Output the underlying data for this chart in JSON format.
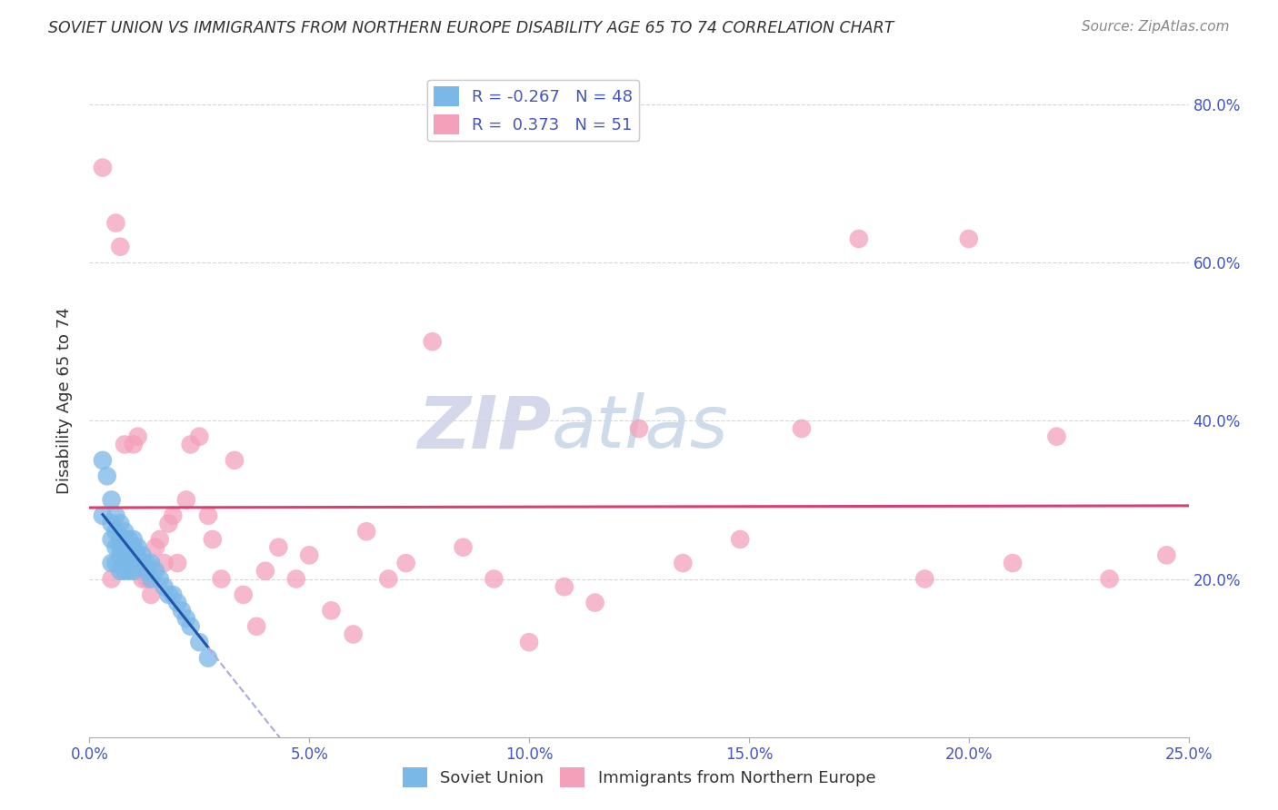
{
  "title": "SOVIET UNION VS IMMIGRANTS FROM NORTHERN EUROPE DISABILITY AGE 65 TO 74 CORRELATION CHART",
  "source": "Source: ZipAtlas.com",
  "ylabel": "Disability Age 65 to 74",
  "xlim": [
    0.0,
    0.25
  ],
  "ylim": [
    0.0,
    0.85
  ],
  "xticks": [
    0.0,
    0.05,
    0.1,
    0.15,
    0.2,
    0.25
  ],
  "yticks": [
    0.2,
    0.4,
    0.6,
    0.8
  ],
  "background_color": "#ffffff",
  "grid_color": "#cccccc",
  "series1_label": "Soviet Union",
  "series2_label": "Immigrants from Northern Europe",
  "series1_color": "#7ab8e8",
  "series2_color": "#f4a0bb",
  "series1_R": -0.267,
  "series1_N": 48,
  "series2_R": 0.373,
  "series2_N": 51,
  "series1_line_color": "#2255aa",
  "series2_line_color": "#d94070",
  "series1_line_dashed_color": "#aaaadd",
  "watermark_zip": "ZIP",
  "watermark_atlas": "atlas",
  "series1_x": [
    0.003,
    0.003,
    0.004,
    0.005,
    0.005,
    0.005,
    0.005,
    0.006,
    0.006,
    0.006,
    0.006,
    0.007,
    0.007,
    0.007,
    0.007,
    0.007,
    0.008,
    0.008,
    0.008,
    0.008,
    0.009,
    0.009,
    0.009,
    0.009,
    0.01,
    0.01,
    0.01,
    0.01,
    0.011,
    0.011,
    0.011,
    0.012,
    0.012,
    0.013,
    0.013,
    0.014,
    0.014,
    0.015,
    0.016,
    0.017,
    0.018,
    0.019,
    0.02,
    0.021,
    0.022,
    0.023,
    0.025,
    0.027
  ],
  "series1_y": [
    0.35,
    0.28,
    0.33,
    0.3,
    0.27,
    0.25,
    0.22,
    0.28,
    0.26,
    0.24,
    0.22,
    0.27,
    0.25,
    0.24,
    0.23,
    0.21,
    0.26,
    0.25,
    0.23,
    0.21,
    0.25,
    0.24,
    0.23,
    0.21,
    0.25,
    0.24,
    0.23,
    0.21,
    0.24,
    0.23,
    0.22,
    0.23,
    0.22,
    0.22,
    0.21,
    0.22,
    0.2,
    0.21,
    0.2,
    0.19,
    0.18,
    0.18,
    0.17,
    0.16,
    0.15,
    0.14,
    0.12,
    0.1
  ],
  "series2_x": [
    0.003,
    0.005,
    0.006,
    0.007,
    0.008,
    0.01,
    0.011,
    0.012,
    0.013,
    0.014,
    0.015,
    0.016,
    0.017,
    0.018,
    0.019,
    0.02,
    0.022,
    0.023,
    0.025,
    0.027,
    0.028,
    0.03,
    0.033,
    0.035,
    0.038,
    0.04,
    0.043,
    0.047,
    0.05,
    0.055,
    0.06,
    0.063,
    0.068,
    0.072,
    0.078,
    0.085,
    0.092,
    0.1,
    0.108,
    0.115,
    0.125,
    0.135,
    0.148,
    0.162,
    0.175,
    0.19,
    0.2,
    0.21,
    0.22,
    0.232,
    0.245
  ],
  "series2_y": [
    0.72,
    0.2,
    0.65,
    0.62,
    0.37,
    0.37,
    0.38,
    0.2,
    0.2,
    0.18,
    0.24,
    0.25,
    0.22,
    0.27,
    0.28,
    0.22,
    0.3,
    0.37,
    0.38,
    0.28,
    0.25,
    0.2,
    0.35,
    0.18,
    0.14,
    0.21,
    0.24,
    0.2,
    0.23,
    0.16,
    0.13,
    0.26,
    0.2,
    0.22,
    0.5,
    0.24,
    0.2,
    0.12,
    0.19,
    0.17,
    0.39,
    0.22,
    0.25,
    0.39,
    0.63,
    0.2,
    0.63,
    0.22,
    0.38,
    0.2,
    0.23
  ]
}
